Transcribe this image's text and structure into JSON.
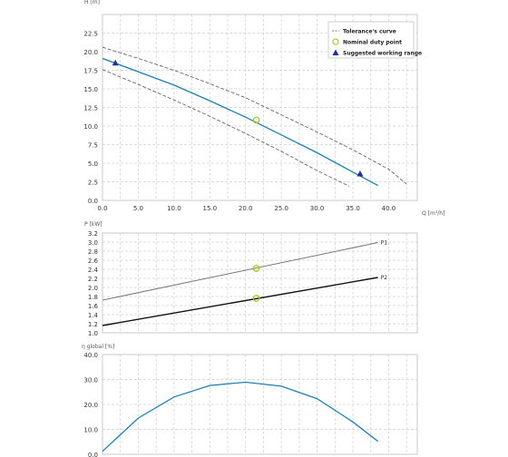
{
  "chart_data": [
    {
      "type": "line",
      "title": "",
      "xlabel": "Q [m³/h]",
      "ylabel": "H [m]",
      "xlim": [
        0,
        44
      ],
      "ylim": [
        0,
        25
      ],
      "x_ticks": [
        0,
        5,
        10,
        15,
        20,
        25,
        30,
        35,
        40
      ],
      "y_ticks": [
        0,
        2.5,
        5,
        7.5,
        10,
        12.5,
        15,
        17.5,
        20,
        22.5
      ],
      "grid": true,
      "legend_position": "top-right",
      "legend": [
        {
          "label": "Tolerance's curve",
          "marker": "dashed-line"
        },
        {
          "label": "Nominal duty point",
          "marker": "circle"
        },
        {
          "label": "Suggested working range",
          "marker": "triangle"
        }
      ],
      "series": [
        {
          "role": "curve",
          "color": "#1f7fb4",
          "x": [
            0,
            5,
            10,
            15,
            20,
            25,
            30,
            35,
            38.5
          ],
          "y": [
            19.1,
            17.3,
            15.5,
            13.4,
            11.2,
            8.8,
            6.4,
            3.8,
            2.0
          ]
        },
        {
          "role": "tolerance-upper",
          "color": "#555555",
          "x": [
            0,
            5,
            10,
            15,
            20,
            25,
            30,
            35,
            40,
            42.5
          ],
          "y": [
            20.6,
            19.1,
            17.5,
            15.7,
            13.8,
            11.5,
            9.2,
            6.8,
            4.2,
            2.2
          ]
        },
        {
          "role": "tolerance-lower",
          "color": "#555555",
          "x": [
            0,
            5,
            10,
            15,
            20,
            25,
            30,
            34.5
          ],
          "y": [
            17.6,
            15.6,
            13.5,
            11.3,
            9.0,
            6.6,
            4.0,
            1.9
          ]
        }
      ],
      "markers": {
        "duty_point": {
          "x": 21.5,
          "y": 10.8,
          "color": "#a8c622"
        },
        "working_range": [
          {
            "x": 1.8,
            "y": 18.5
          },
          {
            "x": 36,
            "y": 3.6
          }
        ],
        "triangle_color": "#1d2ea8"
      }
    },
    {
      "type": "line",
      "title": "",
      "xlabel": "",
      "ylabel": "P [kW]",
      "xlim": [
        0,
        44
      ],
      "ylim": [
        1.0,
        3.2
      ],
      "x_ticks": [
        0,
        5,
        10,
        15,
        20,
        25,
        30,
        35,
        40
      ],
      "y_ticks": [
        1.0,
        1.2,
        1.4,
        1.6,
        1.8,
        2.0,
        2.2,
        2.4,
        2.6,
        2.8,
        3.0,
        3.2
      ],
      "grid": true,
      "series": [
        {
          "name": "P1",
          "color": "#777777",
          "x": [
            0,
            38.5
          ],
          "y": [
            1.72,
            2.99
          ]
        },
        {
          "name": "P2",
          "color": "#111111",
          "x": [
            0,
            38.5
          ],
          "y": [
            1.16,
            2.22
          ]
        }
      ],
      "markers": {
        "duty_points": [
          {
            "x": 21.5,
            "y": 2.42
          },
          {
            "x": 21.5,
            "y": 1.76
          }
        ],
        "color": "#a8c622"
      }
    },
    {
      "type": "line",
      "title": "",
      "xlabel": "",
      "ylabel": "η global [%]",
      "xlim": [
        0,
        44
      ],
      "ylim": [
        0,
        40
      ],
      "x_ticks": [
        0,
        5,
        10,
        15,
        20,
        25,
        30,
        35,
        40
      ],
      "y_ticks": [
        0,
        10,
        20,
        30,
        40
      ],
      "grid": true,
      "series": [
        {
          "role": "efficiency",
          "color": "#1f7fb4",
          "x": [
            0,
            5,
            10,
            15,
            20,
            25,
            30,
            35,
            38.5
          ],
          "y": [
            1.2,
            14.5,
            23.0,
            27.6,
            28.9,
            27.3,
            22.3,
            13.0,
            5.2
          ]
        }
      ]
    }
  ]
}
